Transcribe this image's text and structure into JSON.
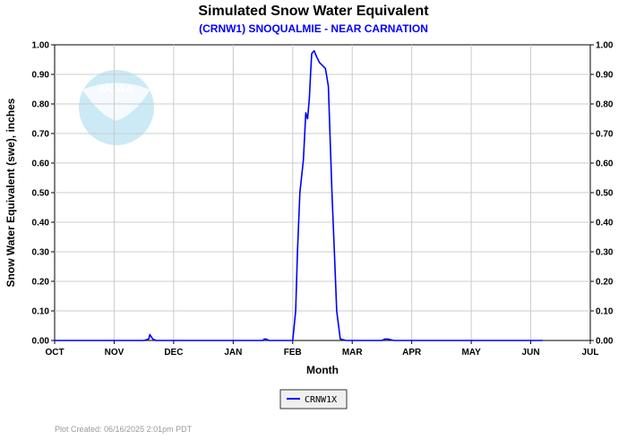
{
  "header": {
    "title": "Simulated Snow Water Equivalent",
    "subtitle": "(CRNW1) SNOQUALMIE - NEAR CARNATION"
  },
  "logo": {
    "text": "NOAA"
  },
  "footer": {
    "plot_created": "Plot Created: 06/16/2025 2:01pm PDT"
  },
  "colors": {
    "series": "#0000ff",
    "grid": "#cccccc",
    "subtitle": "#0000ff"
  },
  "chart_data": {
    "type": "line",
    "title": "Simulated Snow Water Equivalent",
    "subtitle": "(CRNW1) SNOQUALMIE - NEAR CARNATION",
    "xlabel": "Month",
    "ylabel": "Snow Water Equivalent (swe),  inches",
    "x_ticks": [
      "OCT",
      "NOV",
      "DEC",
      "JAN",
      "FEB",
      "MAR",
      "APR",
      "MAY",
      "JUN",
      "JUL"
    ],
    "y_ticks": [
      "0.00",
      "0.10",
      "0.20",
      "0.30",
      "0.40",
      "0.50",
      "0.60",
      "0.70",
      "0.80",
      "0.90",
      "1.00"
    ],
    "ylim": [
      0,
      1
    ],
    "xlim_months": [
      0,
      9
    ],
    "grid": true,
    "legend_position": "bottom-center",
    "series": [
      {
        "name": "CRNW1X",
        "x_months": [
          0,
          1.5,
          1.58,
          1.6,
          1.65,
          1.7,
          3.5,
          3.52,
          3.55,
          3.6,
          4.0,
          4.05,
          4.08,
          4.12,
          4.18,
          4.22,
          4.25,
          4.28,
          4.3,
          4.32,
          4.36,
          4.4,
          4.45,
          4.5,
          4.55,
          4.6,
          4.66,
          4.7,
          4.74,
          4.8,
          4.9,
          5.0,
          5.5,
          5.55,
          5.6,
          5.7,
          6.0,
          7.0,
          8.0,
          8.2
        ],
        "values": [
          0,
          0,
          0.005,
          0.02,
          0.005,
          0,
          0,
          0.005,
          0.005,
          0,
          0,
          0.1,
          0.3,
          0.5,
          0.61,
          0.77,
          0.75,
          0.82,
          0.9,
          0.97,
          0.98,
          0.96,
          0.94,
          0.93,
          0.92,
          0.86,
          0.5,
          0.3,
          0.1,
          0.005,
          0,
          0,
          0,
          0.005,
          0.005,
          0,
          0,
          0,
          0,
          0
        ]
      }
    ]
  }
}
